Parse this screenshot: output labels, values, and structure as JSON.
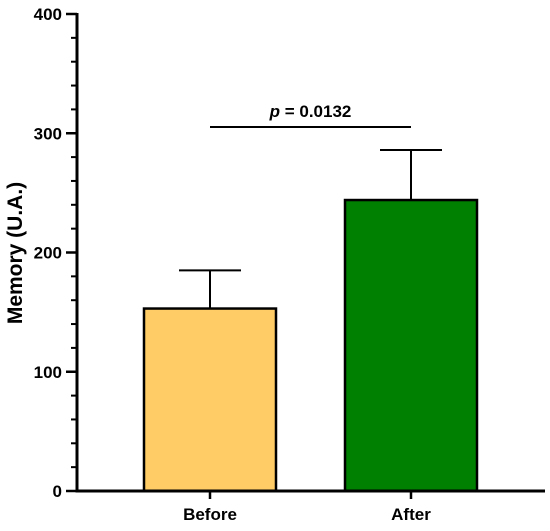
{
  "chart_data": {
    "type": "bar",
    "categories": [
      "Before",
      "After"
    ],
    "values": [
      153,
      244
    ],
    "error_upper": [
      185,
      286
    ],
    "colors": [
      "#FFCC66",
      "#008000"
    ],
    "ylabel": "Memory (U.A.)",
    "xlabel": "",
    "ylim": [
      0,
      400
    ],
    "y_ticks": [
      0,
      100,
      200,
      300,
      400
    ],
    "y_minor_step": 20,
    "grid": false,
    "annotation": {
      "p_symbol": "p",
      "p_rest": " = 0.0132",
      "value": 0.0132
    }
  }
}
